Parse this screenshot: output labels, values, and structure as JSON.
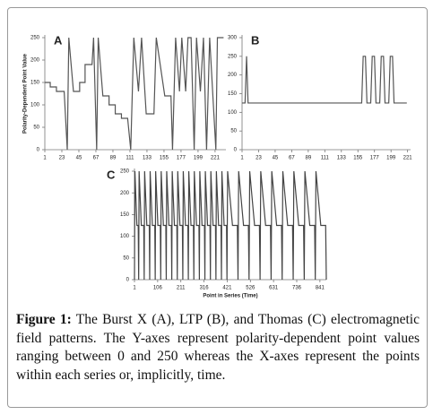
{
  "chart_data": [
    {
      "type": "line",
      "label": "A",
      "ylabel": "Polarity-Dependent Point Value",
      "color": "#555555",
      "x": [
        1,
        8,
        8,
        16,
        16,
        26,
        30,
        32,
        38,
        46,
        46,
        53,
        53,
        62,
        64,
        68,
        70,
        76,
        84,
        84,
        92,
        92,
        100,
        100,
        108,
        112,
        116,
        122,
        126,
        132,
        142,
        145,
        156,
        164,
        166,
        170,
        175,
        178,
        183,
        186,
        190,
        194,
        197,
        202,
        206,
        210,
        214,
        222,
        224,
        232
      ],
      "values": [
        150,
        150,
        140,
        140,
        130,
        130,
        0,
        250,
        130,
        130,
        150,
        150,
        190,
        190,
        250,
        0,
        250,
        120,
        120,
        100,
        100,
        80,
        80,
        70,
        70,
        0,
        250,
        130,
        250,
        80,
        80,
        250,
        120,
        120,
        0,
        250,
        130,
        250,
        130,
        250,
        250,
        0,
        250,
        130,
        250,
        0,
        250,
        0,
        250,
        250
      ],
      "xlim": [
        1,
        235
      ],
      "xticks": [
        1,
        23,
        45,
        67,
        89,
        111,
        133,
        155,
        177,
        199,
        221
      ],
      "ylim": [
        0,
        250
      ],
      "yticks": [
        0,
        50,
        100,
        150,
        200,
        250
      ]
    },
    {
      "type": "line",
      "label": "B",
      "color": "#555555",
      "x": [
        1,
        5,
        7,
        9,
        160,
        162,
        165,
        167,
        172,
        174,
        177,
        179,
        184,
        186,
        189,
        191,
        196,
        198,
        201,
        203,
        220
      ],
      "values": [
        125,
        125,
        250,
        125,
        125,
        250,
        250,
        125,
        125,
        250,
        250,
        125,
        125,
        250,
        250,
        125,
        125,
        250,
        250,
        125,
        125
      ],
      "xlim": [
        1,
        225
      ],
      "xticks": [
        1,
        23,
        45,
        67,
        89,
        111,
        133,
        155,
        177,
        199,
        221
      ],
      "ylim": [
        0,
        300
      ],
      "yticks": [
        0,
        50,
        100,
        150,
        200,
        250,
        300
      ]
    },
    {
      "type": "line",
      "label": "C",
      "xlabel": "Point in Series (Time)",
      "color": "#444444",
      "x": [
        1,
        3,
        12,
        18,
        20,
        22,
        32,
        43,
        45,
        47,
        57,
        68,
        70,
        72,
        82,
        93,
        95,
        97,
        107,
        118,
        120,
        122,
        132,
        143,
        145,
        147,
        157,
        168,
        170,
        172,
        182,
        193,
        195,
        197,
        207,
        218,
        220,
        222,
        232,
        243,
        245,
        247,
        257,
        268,
        270,
        272,
        282,
        293,
        295,
        297,
        307,
        318,
        320,
        322,
        332,
        343,
        345,
        347,
        357,
        368,
        370,
        372,
        382,
        393,
        395,
        397,
        407,
        418,
        420,
        423,
        445,
        467,
        470,
        473,
        495,
        517,
        520,
        523,
        545,
        567,
        570,
        573,
        595,
        617,
        620,
        623,
        645,
        667,
        670,
        673,
        695,
        717,
        720,
        723,
        745,
        767,
        770,
        773,
        795,
        817,
        820,
        823,
        845,
        867,
        870
      ],
      "values": [
        0,
        250,
        125,
        125,
        0,
        250,
        125,
        125,
        0,
        250,
        125,
        125,
        0,
        250,
        125,
        125,
        0,
        250,
        125,
        125,
        0,
        250,
        125,
        125,
        0,
        250,
        125,
        125,
        0,
        250,
        125,
        125,
        0,
        250,
        125,
        125,
        0,
        250,
        125,
        125,
        0,
        250,
        125,
        125,
        0,
        250,
        125,
        125,
        0,
        250,
        125,
        125,
        0,
        250,
        125,
        125,
        0,
        250,
        125,
        125,
        0,
        250,
        125,
        125,
        0,
        250,
        125,
        125,
        0,
        250,
        125,
        125,
        0,
        250,
        125,
        125,
        0,
        250,
        125,
        125,
        0,
        250,
        125,
        125,
        0,
        250,
        125,
        125,
        0,
        250,
        125,
        125,
        0,
        250,
        125,
        125,
        0,
        250,
        125,
        125,
        0,
        250,
        125,
        125,
        0
      ],
      "xlim": [
        1,
        870
      ],
      "xticks": [
        1,
        106,
        211,
        316,
        421,
        526,
        631,
        736,
        841
      ],
      "ylim": [
        0,
        250
      ],
      "yticks": [
        0,
        50,
        100,
        150,
        200,
        250
      ]
    }
  ],
  "caption": {
    "label": "Figure 1:",
    "text": "The Burst X (A), LTP (B), and Thomas (C) electromagnetic field patterns. The Y-axes represent polarity-dependent point values ranging between 0 and 250 whereas the X-axes represent the points within each series or, implicitly, time."
  }
}
